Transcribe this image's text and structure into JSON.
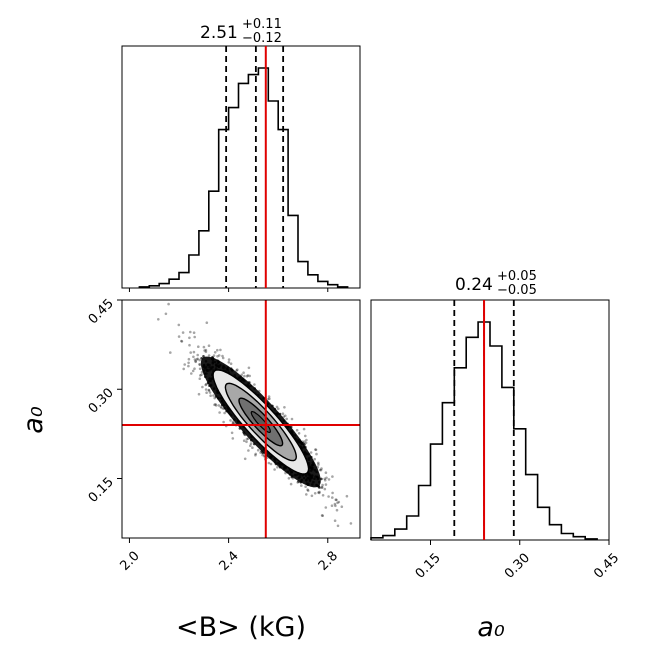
{
  "chart_data": {
    "type": "corner",
    "parameters": [
      {
        "name": "B",
        "xlabel": "<B> (kG)",
        "xlim": [
          1.97,
          2.93
        ],
        "ticks": [
          2.0,
          2.4,
          2.8
        ],
        "tick_labels": [
          "2.0",
          "2.4",
          "2.8"
        ],
        "truth": 2.55,
        "quantiles": [
          2.39,
          2.51,
          2.62
        ],
        "title": {
          "value": "2.51",
          "upper": "+0.11",
          "lower": "−0.12"
        },
        "histogram": {
          "bin_edges": [
            2.04,
            2.08,
            2.12,
            2.16,
            2.2,
            2.24,
            2.28,
            2.32,
            2.36,
            2.4,
            2.44,
            2.48,
            2.52,
            2.56,
            2.6,
            2.64,
            2.68,
            2.72,
            2.76,
            2.8,
            2.84,
            2.88
          ],
          "counts": [
            0.005,
            0.01,
            0.02,
            0.04,
            0.07,
            0.15,
            0.26,
            0.44,
            0.72,
            0.82,
            0.93,
            0.97,
            1.0,
            0.85,
            0.72,
            0.33,
            0.12,
            0.06,
            0.03,
            0.015,
            0.005
          ]
        }
      },
      {
        "name": "a0",
        "xlabel": "a₀",
        "ylabel": "a₀",
        "xlim": [
          0.05,
          0.45
        ],
        "ticks": [
          0.15,
          0.3,
          0.45
        ],
        "tick_labels": [
          "0.15",
          "0.30",
          "0.45"
        ],
        "truth": 0.24,
        "quantiles": [
          0.19,
          0.24,
          0.29
        ],
        "title": {
          "value": "0.24",
          "upper": "+0.05",
          "lower": "−0.05"
        },
        "histogram": {
          "bin_edges": [
            0.05,
            0.07,
            0.09,
            0.11,
            0.13,
            0.15,
            0.17,
            0.19,
            0.21,
            0.23,
            0.25,
            0.27,
            0.29,
            0.31,
            0.33,
            0.35,
            0.37,
            0.39,
            0.41,
            0.43
          ],
          "counts": [
            0.01,
            0.02,
            0.05,
            0.11,
            0.25,
            0.44,
            0.63,
            0.79,
            0.93,
            1.0,
            0.89,
            0.7,
            0.51,
            0.3,
            0.15,
            0.07,
            0.03,
            0.015,
            0.005
          ]
        }
      }
    ],
    "joint": {
      "x_param": "B",
      "y_param": "a0",
      "ylim": [
        0.05,
        0.45
      ],
      "yticks": [
        0.15,
        0.3,
        0.45
      ],
      "ytick_labels": [
        "0.15",
        "0.30",
        "0.45"
      ],
      "center": [
        2.53,
        0.245
      ],
      "correlation": -0.9,
      "sigma": [
        0.11,
        0.05
      ]
    },
    "colors": {
      "truth": "#e00000",
      "hist": "#000000",
      "quantile": "#000000"
    }
  }
}
